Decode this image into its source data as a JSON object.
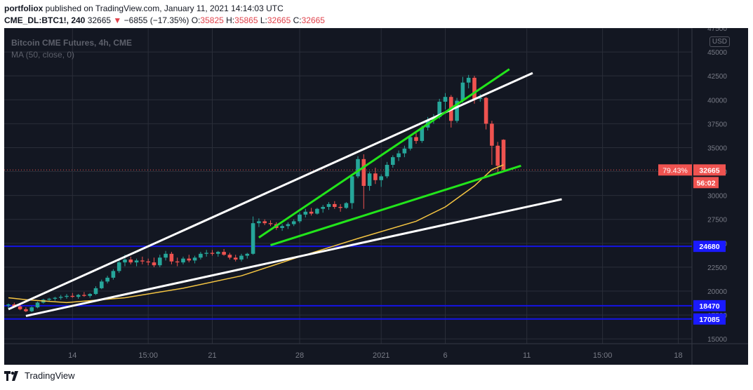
{
  "header": {
    "user": "portfoliox",
    "published_text": "published on TradingView.com, January 11, 2021 14:14:03 UTC",
    "symbol": "CME_DL:BTC1!, 240",
    "last": "32665",
    "change_arrow": "▼",
    "change": "−6855 (−17.35%)",
    "o_label": "O:",
    "o_val": "35825",
    "h_label": "H:",
    "h_val": "35865",
    "l_label": "L:",
    "l_val": "32665",
    "c_label": "C:",
    "c_val": "32665"
  },
  "legend": {
    "title": "Bitcoin CME Futures, 4h, CME",
    "ma": "MA (50, close, 0)"
  },
  "usd_badge": "USD",
  "footer": {
    "brand": "TradingView"
  },
  "colors": {
    "background": "#131722",
    "grid": "#2a2e39",
    "up": "#26a69a",
    "down": "#ef5350",
    "ma": "#f5c542",
    "channel_green": "#22e51b",
    "channel_white": "#ffffff",
    "level_line": "#1414e6",
    "level_label_bg": "#1a1aff",
    "price_label_bg": "#ef5350"
  },
  "chart_data": {
    "type": "candlestick",
    "title": "Bitcoin CME Futures, 4h, CME",
    "x_ticks": [
      "14",
      "15:00",
      "21",
      "28",
      "2021",
      "6",
      "11",
      "15:00",
      "18"
    ],
    "x_tick_pos": [
      11,
      24,
      35,
      50,
      64,
      75,
      89,
      102,
      115
    ],
    "y_ticks": [
      15000,
      17500,
      20000,
      22500,
      25000,
      27500,
      30000,
      32500,
      35000,
      37500,
      40000,
      42500,
      45000,
      47500
    ],
    "ylim": [
      14500,
      47500
    ],
    "grid": true,
    "candles": [
      [
        18500,
        18700,
        18200,
        18600
      ],
      [
        18600,
        18800,
        18300,
        18400
      ],
      [
        18400,
        18600,
        18000,
        18100
      ],
      [
        18100,
        18300,
        17800,
        17900
      ],
      [
        17900,
        18400,
        17800,
        18300
      ],
      [
        18300,
        18900,
        18200,
        18800
      ],
      [
        18800,
        19200,
        18700,
        19100
      ],
      [
        19100,
        19300,
        18900,
        19200
      ],
      [
        19200,
        19400,
        19000,
        19300
      ],
      [
        19300,
        19600,
        19100,
        19400
      ],
      [
        19400,
        19700,
        19200,
        19500
      ],
      [
        19500,
        19800,
        19300,
        19400
      ],
      [
        19400,
        19700,
        19200,
        19600
      ],
      [
        19600,
        19900,
        19400,
        19500
      ],
      [
        19500,
        19800,
        19300,
        19700
      ],
      [
        19700,
        20500,
        19600,
        20300
      ],
      [
        20300,
        21200,
        20200,
        21000
      ],
      [
        21000,
        21600,
        20800,
        21400
      ],
      [
        21400,
        22300,
        21200,
        22100
      ],
      [
        22100,
        23200,
        21900,
        23000
      ],
      [
        23000,
        23800,
        22600,
        23300
      ],
      [
        23300,
        23600,
        22800,
        23000
      ],
      [
        23000,
        23400,
        22600,
        23200
      ],
      [
        23200,
        23600,
        22800,
        23100
      ],
      [
        23100,
        23400,
        22700,
        23000
      ],
      [
        23000,
        23500,
        22500,
        22700
      ],
      [
        22700,
        23800,
        22500,
        23500
      ],
      [
        23500,
        24200,
        23200,
        23900
      ],
      [
        23900,
        24100,
        22800,
        23100
      ],
      [
        23100,
        23500,
        22600,
        23000
      ],
      [
        23000,
        23600,
        22800,
        23400
      ],
      [
        23400,
        23800,
        23000,
        23200
      ],
      [
        23200,
        23700,
        22900,
        23500
      ],
      [
        23500,
        24100,
        23300,
        23900
      ],
      [
        23900,
        24300,
        23600,
        24000
      ],
      [
        24000,
        24300,
        23700,
        23900
      ],
      [
        23900,
        24200,
        23600,
        24100
      ],
      [
        24100,
        24400,
        23700,
        23800
      ],
      [
        23800,
        24000,
        23300,
        23500
      ],
      [
        23500,
        23800,
        23100,
        23300
      ],
      [
        23300,
        23900,
        23100,
        23700
      ],
      [
        23700,
        24000,
        23400,
        23900
      ],
      [
        23900,
        27800,
        23800,
        27100
      ],
      [
        27100,
        27600,
        26700,
        27300
      ],
      [
        27300,
        27500,
        26900,
        27100
      ],
      [
        27100,
        27400,
        26800,
        27000
      ],
      [
        27000,
        27200,
        26400,
        26600
      ],
      [
        26600,
        27000,
        26300,
        26800
      ],
      [
        26800,
        27200,
        26500,
        27000
      ],
      [
        27000,
        27500,
        26800,
        27300
      ],
      [
        27300,
        28200,
        27100,
        28000
      ],
      [
        28000,
        28600,
        27700,
        28300
      ],
      [
        28300,
        28700,
        27900,
        28100
      ],
      [
        28100,
        28700,
        28000,
        28600
      ],
      [
        28600,
        29000,
        28200,
        28800
      ],
      [
        28800,
        29300,
        28500,
        29100
      ],
      [
        29100,
        29400,
        28600,
        28800
      ],
      [
        28800,
        29100,
        28300,
        28700
      ],
      [
        28700,
        29300,
        28600,
        29200
      ],
      [
        29200,
        32200,
        28600,
        32000
      ],
      [
        32000,
        34100,
        31800,
        33800
      ],
      [
        33800,
        34300,
        28600,
        31000
      ],
      [
        31000,
        32500,
        30500,
        32300
      ],
      [
        32300,
        32900,
        31200,
        31600
      ],
      [
        31600,
        32200,
        30900,
        32000
      ],
      [
        32000,
        33500,
        31800,
        33200
      ],
      [
        33200,
        34200,
        32900,
        34000
      ],
      [
        34000,
        34700,
        33600,
        34400
      ],
      [
        34400,
        35200,
        34000,
        34900
      ],
      [
        34900,
        36300,
        34700,
        36100
      ],
      [
        36100,
        36500,
        35400,
        35700
      ],
      [
        35700,
        37300,
        35500,
        37100
      ],
      [
        37100,
        38200,
        36800,
        37900
      ],
      [
        37900,
        38500,
        37500,
        38200
      ],
      [
        38200,
        40100,
        38000,
        39800
      ],
      [
        39800,
        40700,
        39000,
        40300
      ],
      [
        40300,
        40500,
        37100,
        37800
      ],
      [
        37800,
        40200,
        37600,
        39900
      ],
      [
        39900,
        42400,
        39700,
        41800
      ],
      [
        41800,
        42600,
        41200,
        42300
      ],
      [
        42300,
        42500,
        39600,
        40100
      ],
      [
        40100,
        40600,
        39800,
        40200
      ],
      [
        40200,
        40300,
        36900,
        37500
      ],
      [
        37500,
        37800,
        33200,
        35200
      ],
      [
        35200,
        35600,
        32400,
        33100
      ],
      [
        35825,
        35865,
        32665,
        32665
      ]
    ],
    "ma_50": [
      [
        0,
        19300
      ],
      [
        3,
        19100
      ],
      [
        10,
        18800
      ],
      [
        20,
        19300
      ],
      [
        30,
        20300
      ],
      [
        40,
        21600
      ],
      [
        50,
        23600
      ],
      [
        60,
        25500
      ],
      [
        70,
        27300
      ],
      [
        75,
        28800
      ],
      [
        80,
        31000
      ],
      [
        83,
        32700
      ],
      [
        85,
        33200
      ]
    ],
    "trend_lines": [
      {
        "color": "white",
        "points": [
          [
            0,
            18100
          ],
          [
            90,
            42800
          ]
        ]
      },
      {
        "color": "white",
        "points": [
          [
            3,
            17400
          ],
          [
            95,
            29600
          ]
        ]
      },
      {
        "color": "green",
        "points": [
          [
            43,
            25600
          ],
          [
            86,
            43200
          ]
        ]
      },
      {
        "color": "green",
        "points": [
          [
            45,
            24800
          ],
          [
            88,
            33100
          ]
        ]
      }
    ],
    "horizontal_levels": [
      24680,
      18470,
      17085
    ],
    "price_labels": {
      "percent": "79.43%",
      "current": "32665",
      "countdown": "56:02",
      "levels": [
        "24680",
        "18470",
        "17085"
      ]
    }
  }
}
